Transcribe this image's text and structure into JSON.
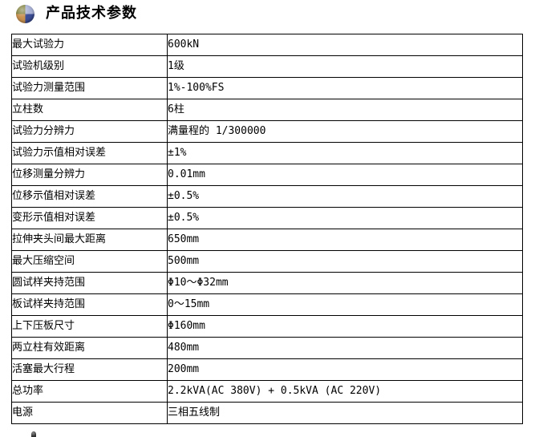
{
  "page": {
    "title": "产品技术参数",
    "icon": "sphere-quadrant-icon",
    "colors": {
      "background": "#ffffff",
      "text": "#000000",
      "table_border": "#000000",
      "icon_quadrant_top_left": "#7e7e3a",
      "icon_quadrant_top_right": "#a9b2d6",
      "icon_quadrant_bottom_left": "#c9914f",
      "icon_quadrant_bottom_right": "#3d4e97"
    }
  },
  "table": {
    "columns": [
      "parameter",
      "value"
    ],
    "rows": [
      {
        "label": "最大试验力",
        "value": "600kN"
      },
      {
        "label": "试验机级别",
        "value": "1级"
      },
      {
        "label": "试验力测量范围",
        "value": "1%-100%FS"
      },
      {
        "label": "立柱数",
        "value": "6柱"
      },
      {
        "label": "试验力分辨力",
        "value": "满量程的 1/300000"
      },
      {
        "label": "试验力示值相对误差",
        "value": "±1%"
      },
      {
        "label": "位移测量分辨力",
        "value": "0.01mm"
      },
      {
        "label": "位移示值相对误差",
        "value": "±0.5%"
      },
      {
        "label": "变形示值相对误差",
        "value": "±0.5%"
      },
      {
        "label": "拉伸夹头间最大距离",
        "value": "650mm"
      },
      {
        "label": "最大压缩空间",
        "value": "500mm"
      },
      {
        "label": "圆试样夹持范围",
        "value": "Φ10～Φ32mm"
      },
      {
        "label": "板试样夹持范围",
        "value": "0～15mm"
      },
      {
        "label": "上下压板尺寸",
        "value": "Φ160mm"
      },
      {
        "label": "两立柱有效距离",
        "value": "480mm"
      },
      {
        "label": "活塞最大行程",
        "value": "200mm"
      },
      {
        "label": "总功率",
        "value": "2.2kVA(AC 380V) + 0.5kVA (AC 220V)"
      },
      {
        "label": "电源",
        "value": "三相五线制"
      }
    ]
  }
}
